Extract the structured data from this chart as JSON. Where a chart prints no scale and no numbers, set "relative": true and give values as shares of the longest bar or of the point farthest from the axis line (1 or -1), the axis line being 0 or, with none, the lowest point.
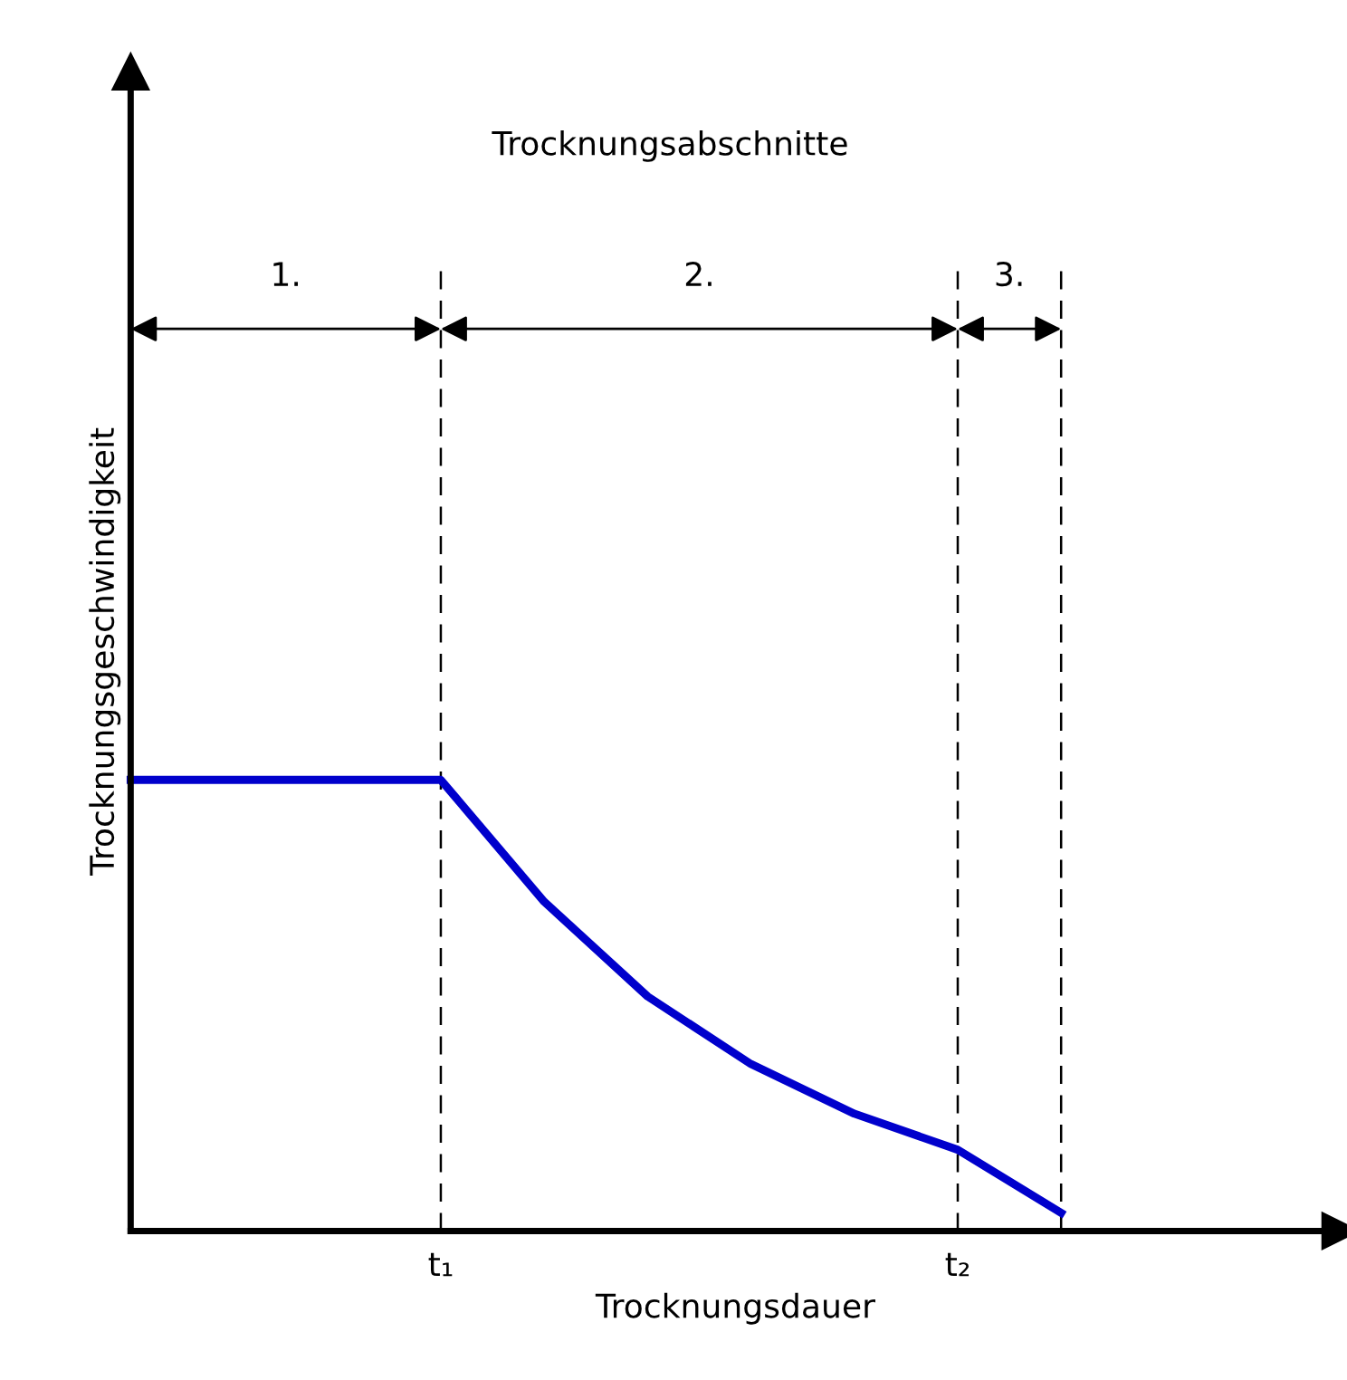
{
  "chart_data": {
    "type": "line",
    "title": "Trocknungsabschnitte",
    "xlabel": "Trocknungsdauer",
    "ylabel": "Trocknungsgeschwindigkeit",
    "relative": true,
    "categories": [
      null,
      null,
      null,
      "t₁",
      null,
      null,
      null,
      null,
      "t₂",
      null
    ],
    "series": [
      {
        "color": "#0000cc",
        "values": [
          1,
          1,
          1,
          1,
          0.73,
          0.52,
          0.37,
          0.26,
          0.18,
          0.04
        ]
      }
    ],
    "grid": "x",
    "annotations": [
      "1.",
      "2.",
      "3."
    ],
    "line_style": "solid"
  }
}
